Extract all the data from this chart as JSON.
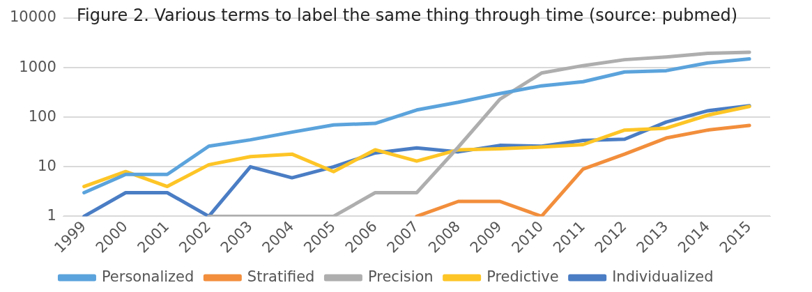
{
  "chart_data": {
    "type": "line",
    "title": "Figure 2. Various terms to label the same thing through time (source: pubmed)",
    "categories": [
      "1999",
      "2000",
      "2001",
      "2002",
      "2003",
      "2004",
      "2005",
      "2006",
      "2007",
      "2008",
      "2009",
      "2010",
      "2011",
      "2012",
      "2013",
      "2014",
      "2015"
    ],
    "series": [
      {
        "name": "Personalized",
        "color": "#5ba3dc",
        "values": [
          3,
          7,
          7,
          26,
          35,
          50,
          70,
          75,
          140,
          200,
          300,
          430,
          520,
          820,
          870,
          1250,
          1500
        ]
      },
      {
        "name": "Stratified",
        "color": "#f28e3c",
        "values": [
          null,
          null,
          null,
          null,
          null,
          null,
          null,
          null,
          1,
          2,
          2,
          1,
          9,
          18,
          38,
          55,
          68
        ]
      },
      {
        "name": "Precision",
        "color": "#aeaeae",
        "values": [
          null,
          null,
          null,
          1,
          1,
          1,
          1,
          3,
          3,
          25,
          230,
          780,
          1100,
          1450,
          1650,
          1950,
          2050
        ]
      },
      {
        "name": "Predictive",
        "color": "#fdc526",
        "values": [
          4,
          8,
          4,
          11,
          16,
          18,
          8,
          22,
          13,
          22,
          23,
          25,
          28,
          55,
          60,
          110,
          165
        ]
      },
      {
        "name": "Individualized",
        "color": "#4a7dc4",
        "values": [
          1,
          3,
          3,
          1,
          10,
          6,
          10,
          19,
          24,
          20,
          27,
          26,
          34,
          36,
          80,
          135,
          170
        ]
      }
    ],
    "log": "y",
    "ylim": [
      1,
      10000
    ],
    "yticks": [
      1,
      10,
      100,
      1000,
      10000
    ],
    "grid": "y",
    "legend": "bottom",
    "marker": "none",
    "line_style": "solid"
  }
}
